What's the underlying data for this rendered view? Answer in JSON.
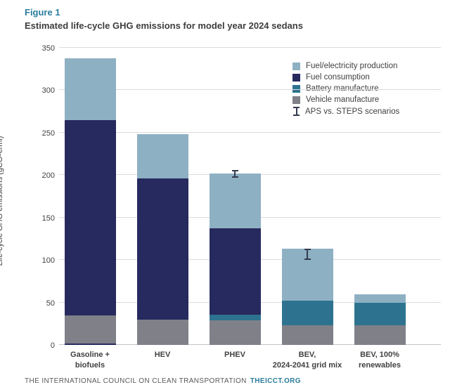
{
  "figure": {
    "label": "Figure 1",
    "title": "Estimated life-cycle GHG emissions for model year 2024 sedans"
  },
  "footer": {
    "text": "THE INTERNATIONAL COUNCIL ON CLEAN TRANSPORTATION",
    "link": "THEICCT.ORG"
  },
  "colors": {
    "accent_teal": "#2a7d9c",
    "fuel_electricity_production": "#8eb0c3",
    "fuel_consumption": "#272a5e",
    "battery_manufacture": "#2d7390",
    "vehicle_manufacture": "#808089",
    "error_bar": "#333c4e",
    "gridline": "#dbdbdf",
    "text_dark": "#414042"
  },
  "legend": {
    "items": [
      {
        "label": "Fuel/electricity production",
        "type": "swatch",
        "color": "#8eb0c3"
      },
      {
        "label": "Fuel consumption",
        "type": "swatch",
        "color": "#272a5e"
      },
      {
        "label": "Battery manufacture",
        "type": "swatch",
        "color": "#2d7390"
      },
      {
        "label": "Vehicle manufacture",
        "type": "swatch",
        "color": "#808089"
      },
      {
        "label": "APS vs. STEPS scenarios",
        "type": "errorbar",
        "color": "#333c4e"
      }
    ]
  },
  "chart_data": {
    "type": "bar",
    "stacked": true,
    "title": "Estimated life-cycle GHG emissions for model year 2024 sedans",
    "ylabel": "Life-cycle GHG emissions (gCO₂e/mi)",
    "xlabel": "",
    "ylim": [
      0,
      350
    ],
    "yticks": [
      0,
      50,
      100,
      150,
      200,
      250,
      300,
      350
    ],
    "grid": true,
    "legend_position": "top-right",
    "categories": [
      "Gasoline + biofuels",
      "HEV",
      "PHEV",
      "BEV, 2024-2041 grid mix",
      "BEV, 100% renewables"
    ],
    "category_label_lines": [
      [
        "Gasoline +",
        "biofuels"
      ],
      [
        "HEV"
      ],
      [
        "PHEV"
      ],
      [
        "BEV,",
        "2024-2041 grid mix"
      ],
      [
        "BEV, 100%",
        "renewables"
      ]
    ],
    "series": [
      {
        "name": "Vehicle manufacture",
        "color": "#808089",
        "values": [
          33,
          30,
          29,
          23,
          23
        ]
      },
      {
        "name": "Battery manufacture",
        "color": "#2d7390",
        "values": [
          0,
          0,
          7,
          29,
          27
        ]
      },
      {
        "name": "Fuel consumption",
        "color": "#272a5e",
        "values": [
          230,
          166,
          101,
          0,
          0
        ]
      },
      {
        "name": "Fuel/electricity production",
        "color": "#8eb0c3",
        "values": [
          73,
          52,
          65,
          61,
          10
        ]
      }
    ],
    "totals": [
      336,
      248,
      202,
      113,
      60
    ],
    "error_bars": [
      {
        "category": "PHEV",
        "low": 197,
        "high": 206
      },
      {
        "category": "BEV, 2024-2041 grid mix",
        "low": 100,
        "high": 113
      }
    ]
  }
}
